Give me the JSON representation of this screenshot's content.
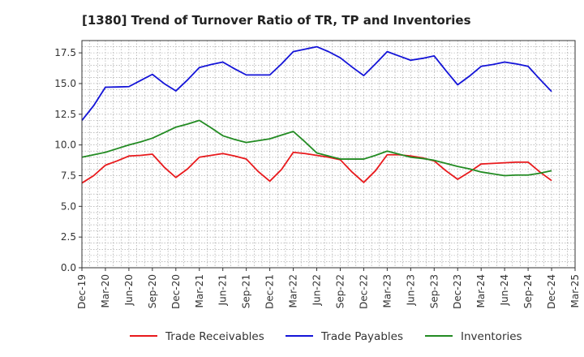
{
  "chart_data": {
    "type": "line",
    "title": "[1380]  Trend of Turnover Ratio of TR, TP and Inventories",
    "xlabel": "",
    "ylabel": "",
    "ylim": [
      0,
      18.5
    ],
    "yticks": [
      "0.0",
      "2.5",
      "5.0",
      "7.5",
      "10.0",
      "12.5",
      "15.0",
      "17.5"
    ],
    "ytick_values": [
      0,
      2.5,
      5,
      7.5,
      10,
      12.5,
      15,
      17.5
    ],
    "xtick_labels": [
      "Dec-19",
      "Mar-20",
      "Jun-20",
      "Sep-20",
      "Dec-20",
      "Mar-21",
      "Jun-21",
      "Sep-21",
      "Dec-21",
      "Mar-22",
      "Jun-22",
      "Sep-22",
      "Dec-22",
      "Mar-23",
      "Jun-23",
      "Sep-23",
      "Dec-23",
      "Mar-24",
      "Jun-24",
      "Sep-24",
      "Dec-24",
      "Mar-25"
    ],
    "grid": true,
    "legend_position": "bottom",
    "series": [
      {
        "name": "Trade Receivables",
        "color": "#e8191c",
        "values": [
          6.9,
          7.5,
          8.35,
          8.7,
          9.1,
          9.15,
          9.25,
          8.2,
          7.35,
          8.05,
          9.0,
          9.15,
          9.3,
          9.1,
          8.85,
          7.85,
          7.05,
          8.0,
          9.4,
          9.3,
          9.15,
          9.0,
          8.8,
          7.8,
          6.95,
          7.9,
          9.2,
          9.2,
          9.1,
          8.95,
          8.7,
          7.9,
          7.2,
          7.8,
          8.45,
          8.5,
          8.55,
          8.6,
          8.6,
          7.8,
          7.1
        ]
      },
      {
        "name": "Trade Payables",
        "color": "#1414d8",
        "values": [
          12.0,
          13.2,
          14.7,
          14.72,
          14.75,
          15.25,
          15.75,
          15.0,
          14.4,
          15.3,
          16.3,
          16.55,
          16.75,
          16.2,
          15.7,
          15.7,
          15.7,
          16.6,
          17.6,
          17.8,
          18.0,
          17.6,
          17.1,
          16.35,
          15.65,
          16.6,
          17.6,
          17.25,
          16.9,
          17.05,
          17.25,
          16.05,
          14.9,
          15.6,
          16.4,
          16.55,
          16.75,
          16.6,
          16.4,
          15.35,
          14.35
        ]
      },
      {
        "name": "Inventories",
        "color": "#228b22",
        "values": [
          9.0,
          9.2,
          9.4,
          9.7,
          10.0,
          10.25,
          10.55,
          11.0,
          11.45,
          11.7,
          12.0,
          11.4,
          10.75,
          10.45,
          10.2,
          10.35,
          10.5,
          10.8,
          11.1,
          10.25,
          9.35,
          9.1,
          8.85,
          8.85,
          8.85,
          9.15,
          9.5,
          9.25,
          9.0,
          8.9,
          8.75,
          8.5,
          8.25,
          8.05,
          7.8,
          7.65,
          7.5,
          7.55,
          7.55,
          7.7,
          7.9
        ]
      }
    ]
  }
}
